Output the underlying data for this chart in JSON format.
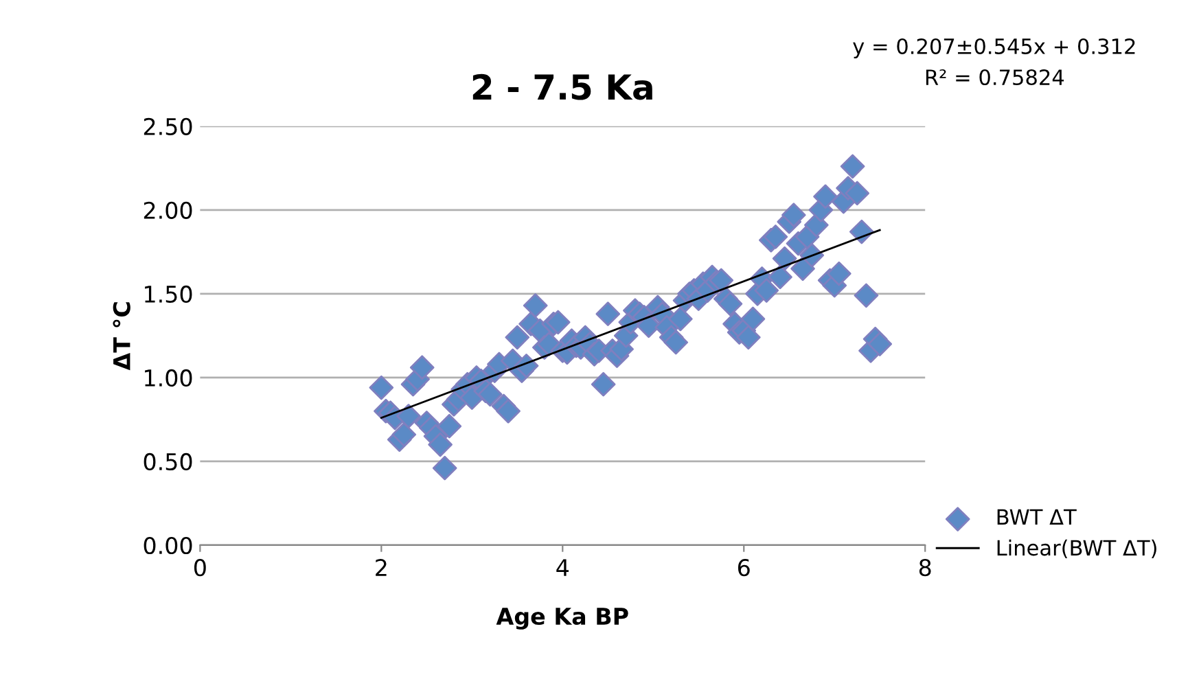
{
  "chart_data": {
    "type": "scatter",
    "title": "2 - 7.5 Ka",
    "xlabel": "Age Ka BP",
    "ylabel": "ΔT °C",
    "annotations": [
      "y = 0.207±0.545x + 0.312",
      "R² = 0.75824"
    ],
    "xlim": [
      0,
      8
    ],
    "xticks": [
      0,
      2,
      4,
      6,
      8
    ],
    "ylim": [
      0,
      2.5
    ],
    "yticks": [
      {
        "value": 0,
        "label": "0.00"
      },
      {
        "value": 0.5,
        "label": "0.50"
      },
      {
        "value": 1,
        "label": "1.00"
      },
      {
        "value": 1.5,
        "label": "1.50"
      },
      {
        "value": 2,
        "label": "2.00"
      },
      {
        "value": 2.5,
        "label": "2.50"
      }
    ],
    "grid": "y",
    "legend": "bottom right",
    "series": [
      {
        "name": "BWT ΔT",
        "marker": "diamond",
        "color": "#5b8ac6",
        "x": [
          2.0,
          2.05,
          2.1,
          2.15,
          2.2,
          2.25,
          2.3,
          2.35,
          2.4,
          2.45,
          2.5,
          2.55,
          2.6,
          2.65,
          2.7,
          2.75,
          2.8,
          2.85,
          2.9,
          2.95,
          3.0,
          3.05,
          3.1,
          3.15,
          3.2,
          3.25,
          3.3,
          3.35,
          3.4,
          3.45,
          3.5,
          3.55,
          3.6,
          3.65,
          3.7,
          3.75,
          3.8,
          3.85,
          3.9,
          3.95,
          4.0,
          4.05,
          4.1,
          4.15,
          4.2,
          4.25,
          4.3,
          4.35,
          4.4,
          4.45,
          4.5,
          4.55,
          4.6,
          4.65,
          4.7,
          4.75,
          4.8,
          4.85,
          4.9,
          4.95,
          5.05,
          5.1,
          5.15,
          5.2,
          5.25,
          5.3,
          5.35,
          5.4,
          5.45,
          5.5,
          5.55,
          5.6,
          5.65,
          5.7,
          5.75,
          5.8,
          5.85,
          5.9,
          5.95,
          6.0,
          6.05,
          6.1,
          6.15,
          6.2,
          6.25,
          6.3,
          6.35,
          6.4,
          6.45,
          6.5,
          6.55,
          6.6,
          6.65,
          6.7,
          6.75,
          6.8,
          6.85,
          6.9,
          6.95,
          7.0,
          7.05,
          7.1,
          7.15,
          7.2,
          7.25,
          7.3,
          7.35,
          7.4,
          7.45,
          7.5
        ],
        "values": [
          0.94,
          0.8,
          0.79,
          0.76,
          0.63,
          0.66,
          0.77,
          0.96,
          0.99,
          1.06,
          0.73,
          0.7,
          0.65,
          0.6,
          0.46,
          0.71,
          0.84,
          0.87,
          0.93,
          0.96,
          0.88,
          1.0,
          0.98,
          0.92,
          0.9,
          1.04,
          1.08,
          0.83,
          0.8,
          1.1,
          1.24,
          1.04,
          1.07,
          1.32,
          1.43,
          1.28,
          1.18,
          1.2,
          1.32,
          1.33,
          1.16,
          1.15,
          1.22,
          1.19,
          1.18,
          1.24,
          1.2,
          1.14,
          1.16,
          0.96,
          1.38,
          1.16,
          1.13,
          1.17,
          1.25,
          1.33,
          1.4,
          1.38,
          1.36,
          1.31,
          1.42,
          1.38,
          1.3,
          1.24,
          1.21,
          1.35,
          1.46,
          1.5,
          1.52,
          1.47,
          1.56,
          1.52,
          1.6,
          1.57,
          1.58,
          1.47,
          1.44,
          1.32,
          1.27,
          1.28,
          1.24,
          1.35,
          1.5,
          1.59,
          1.52,
          1.82,
          1.84,
          1.6,
          1.71,
          1.93,
          1.97,
          1.8,
          1.65,
          1.84,
          1.73,
          1.91,
          2.0,
          2.08,
          1.58,
          1.55,
          1.62,
          2.05,
          2.13,
          2.26,
          2.1,
          1.87,
          1.49,
          1.16,
          1.23,
          1.2
        ]
      },
      {
        "name": "Linear(BWT ΔT)",
        "type": "line",
        "marker": "none",
        "color": "#000000",
        "x": [
          2.0,
          7.5
        ],
        "values": [
          0.76,
          1.88
        ]
      }
    ]
  }
}
